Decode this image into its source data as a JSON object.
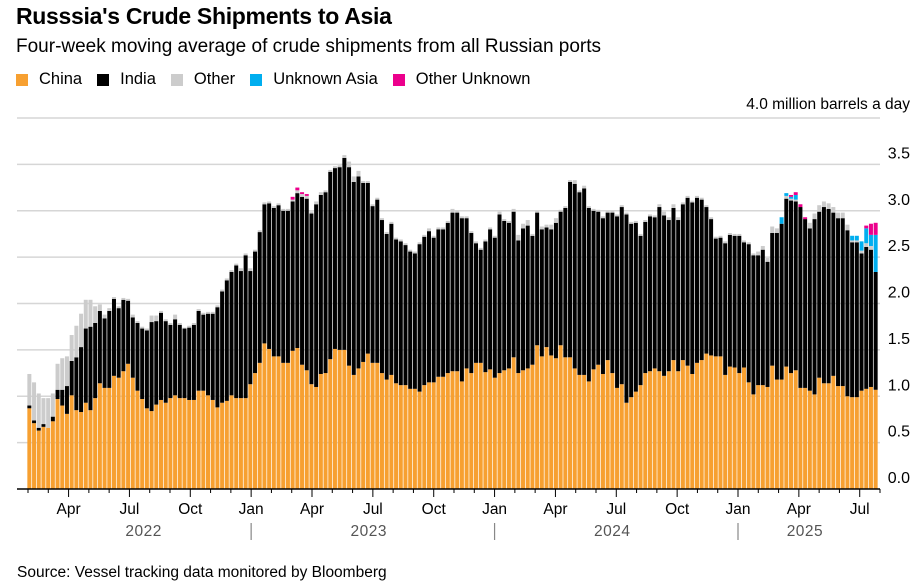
{
  "chart_data": {
    "type": "bar",
    "stacked": true,
    "title": "Russsia's Crude Shipments to Asia",
    "subtitle": "Four-week moving average of crude shipments from all Russian ports",
    "unit_label": "4.0 million barrels a day",
    "ylim": [
      0,
      4.0
    ],
    "y_ticks": [
      "0.0",
      "0.5",
      "1.0",
      "1.5",
      "2.0",
      "2.5",
      "3.0",
      "3.5"
    ],
    "y_tick_values": [
      0,
      0.5,
      1.0,
      1.5,
      2.0,
      2.5,
      3.0,
      3.5
    ],
    "grid": true,
    "legend_position": "top-left",
    "x_month_labels": [
      {
        "label": "Apr",
        "month_index": 2
      },
      {
        "label": "Jul",
        "month_index": 5
      },
      {
        "label": "Oct",
        "month_index": 8
      },
      {
        "label": "Jan",
        "month_index": 11
      },
      {
        "label": "Apr",
        "month_index": 14
      },
      {
        "label": "Jul",
        "month_index": 17
      },
      {
        "label": "Oct",
        "month_index": 20
      },
      {
        "label": "Jan",
        "month_index": 23
      },
      {
        "label": "Apr",
        "month_index": 26
      },
      {
        "label": "Jul",
        "month_index": 29
      },
      {
        "label": "Oct",
        "month_index": 32
      },
      {
        "label": "Jan",
        "month_index": 35
      },
      {
        "label": "Apr",
        "month_index": 38
      },
      {
        "label": "Jul",
        "month_index": 41
      }
    ],
    "x_year_labels": [
      {
        "label": "2022",
        "month_index": 5.7
      },
      {
        "label": "2023",
        "month_index": 16.8
      },
      {
        "label": "2024",
        "month_index": 28.8
      },
      {
        "label": "2025",
        "month_index": 38.3
      }
    ],
    "year_separators_month_index": [
      11,
      23,
      35
    ],
    "num_months": 43,
    "series": [
      {
        "name": "China",
        "color": "#f7a031",
        "values": [
          0.87,
          0.71,
          0.63,
          0.67,
          0.66,
          0.73,
          0.97,
          0.9,
          0.81,
          1.01,
          0.85,
          0.83,
          0.93,
          0.85,
          0.98,
          1.14,
          1.09,
          1.09,
          1.22,
          1.2,
          1.27,
          1.35,
          1.2,
          1.06,
          0.97,
          0.87,
          0.84,
          0.91,
          0.96,
          0.93,
          0.98,
          1.01,
          0.98,
          0.98,
          0.96,
          0.96,
          1.06,
          1.06,
          1.01,
          0.96,
          0.88,
          0.93,
          0.95,
          1.01,
          0.98,
          0.98,
          0.98,
          1.13,
          1.25,
          1.36,
          1.57,
          1.51,
          1.43,
          1.43,
          1.36,
          1.36,
          1.49,
          1.52,
          1.34,
          1.28,
          1.13,
          1.1,
          1.24,
          1.25,
          1.4,
          1.51,
          1.5,
          1.5,
          1.33,
          1.23,
          1.3,
          1.37,
          1.46,
          1.36,
          1.36,
          1.25,
          1.18,
          1.23,
          1.14,
          1.12,
          1.12,
          1.08,
          1.08,
          1.05,
          1.12,
          1.15,
          1.15,
          1.21,
          1.21,
          1.25,
          1.27,
          1.27,
          1.16,
          1.3,
          1.25,
          1.36,
          1.36,
          1.26,
          1.29,
          1.2,
          1.25,
          1.28,
          1.3,
          1.42,
          1.25,
          1.28,
          1.3,
          1.34,
          1.55,
          1.43,
          1.53,
          1.44,
          1.41,
          1.55,
          1.42,
          1.42,
          1.3,
          1.23,
          1.23,
          1.16,
          1.29,
          1.34,
          1.24,
          1.39,
          1.25,
          1.09,
          1.13,
          0.93,
          0.99,
          1.05,
          1.12,
          1.25,
          1.27,
          1.3,
          1.27,
          1.22,
          1.27,
          1.39,
          1.27,
          1.39,
          1.33,
          1.24,
          1.36,
          1.39,
          1.46,
          1.44,
          1.43,
          1.43,
          1.23,
          1.32,
          1.31,
          1.25,
          1.31,
          1.15,
          1.02,
          1.12,
          1.12,
          1.1,
          1.33,
          1.18,
          1.18,
          1.32,
          1.25,
          1.28,
          1.09,
          1.09,
          1.06,
          1.02,
          1.2,
          1.14,
          1.14,
          1.22,
          1.11,
          1.11,
          1.0,
          0.99,
          0.99,
          1.06,
          1.08,
          1.1,
          1.07
        ]
      },
      {
        "name": "India",
        "color": "#000000",
        "values": [
          0.03,
          0.03,
          0.03,
          0.03,
          0,
          0.05,
          0.1,
          0.17,
          0.3,
          0.37,
          0.57,
          0.7,
          0.8,
          0.9,
          0.81,
          0.78,
          0.75,
          0.83,
          0.83,
          0.75,
          0.77,
          0.68,
          0.65,
          0.73,
          0.76,
          0.84,
          0.96,
          0.9,
          0.94,
          0.88,
          0.79,
          0.82,
          0.79,
          0.75,
          0.78,
          0.81,
          0.86,
          0.82,
          0.88,
          0.93,
          1.08,
          1.2,
          1.3,
          1.33,
          1.43,
          1.37,
          1.54,
          1.22,
          1.31,
          1.41,
          1.5,
          1.57,
          1.6,
          1.63,
          1.64,
          1.64,
          1.61,
          1.67,
          1.81,
          1.85,
          1.84,
          1.97,
          1.93,
          1.95,
          2.02,
          1.95,
          1.97,
          2.07,
          2.14,
          2.08,
          2.07,
          1.93,
          1.84,
          1.69,
          1.76,
          1.65,
          1.57,
          1.63,
          1.55,
          1.55,
          1.51,
          1.48,
          1.46,
          1.59,
          1.6,
          1.63,
          1.56,
          1.59,
          1.59,
          1.62,
          1.71,
          1.71,
          1.76,
          1.62,
          1.51,
          1.29,
          1.22,
          1.41,
          1.51,
          1.51,
          1.71,
          1.61,
          1.57,
          1.57,
          1.43,
          1.53,
          1.54,
          1.39,
          1.43,
          1.37,
          1.29,
          1.36,
          1.46,
          1.44,
          1.61,
          1.89,
          1.99,
          1.97,
          2.01,
          1.87,
          1.71,
          1.65,
          1.68,
          1.59,
          1.73,
          1.85,
          1.91,
          2.03,
          1.87,
          1.82,
          1.61,
          1.63,
          1.67,
          1.63,
          1.77,
          1.73,
          1.63,
          1.64,
          1.63,
          1.68,
          1.81,
          1.85,
          1.78,
          1.73,
          1.58,
          1.47,
          1.27,
          1.28,
          1.42,
          1.42,
          1.42,
          1.48,
          1.35,
          1.49,
          1.5,
          1.4,
          1.46,
          1.35,
          1.43,
          1.58,
          1.68,
          1.81,
          1.86,
          1.82,
          1.95,
          1.82,
          1.75,
          1.89,
          1.79,
          1.9,
          1.88,
          1.76,
          1.81,
          1.81,
          1.79,
          1.67,
          1.67,
          1.48,
          1.53,
          1.48,
          1.27
        ]
      },
      {
        "name": "Other",
        "color": "#cccccc",
        "values": [
          0.34,
          0.41,
          0.37,
          0.28,
          0.32,
          0.25,
          0.28,
          0.34,
          0.32,
          0.28,
          0.34,
          0.36,
          0.31,
          0.29,
          0.18,
          0.07,
          0.04,
          0.03,
          0.02,
          0.02,
          0.02,
          0.02,
          0.03,
          0.02,
          0.02,
          0.02,
          0.07,
          0.06,
          0.02,
          0.02,
          0.02,
          0.05,
          0.02,
          0.01,
          0.02,
          0.02,
          0.02,
          0.02,
          0.02,
          0.02,
          0.02,
          0.02,
          0.02,
          0.02,
          0.02,
          0.03,
          0.02,
          0.03,
          0.02,
          0.02,
          0.02,
          0.02,
          0.02,
          0.02,
          0.02,
          0.02,
          0.02,
          0.03,
          0.03,
          0.03,
          0.02,
          0.03,
          0.03,
          0.02,
          0.02,
          0.02,
          0.02,
          0.03,
          0.06,
          0.06,
          0.06,
          0.02,
          0.02,
          0.02,
          0.02,
          0.02,
          0.02,
          0.02,
          0.02,
          0.02,
          0.02,
          0.02,
          0.02,
          0.02,
          0.02,
          0.03,
          0.02,
          0.02,
          0.02,
          0.02,
          0.04,
          0.02,
          0.02,
          0.02,
          0.02,
          0.02,
          0.02,
          0.02,
          0.02,
          0.02,
          0.03,
          0.02,
          0.02,
          0.03,
          0.06,
          0.05,
          0.06,
          0.02,
          0.02,
          0.03,
          0.03,
          0.05,
          0.05,
          0.02,
          0.02,
          0.02,
          0.04,
          0.02,
          0.03,
          0.02,
          0.02,
          0.02,
          0.02,
          0.02,
          0.02,
          0.02,
          0.02,
          0.02,
          0.02,
          0.02,
          0.02,
          0.02,
          0.02,
          0.02,
          0.03,
          0.04,
          0.03,
          0.04,
          0.03,
          0.02,
          0.02,
          0.02,
          0.02,
          0.02,
          0.02,
          0.02,
          0.02,
          0.02,
          0.02,
          0.02,
          0.02,
          0.02,
          0.02,
          0.02,
          0.02,
          0.04,
          0.04,
          0.04,
          0.07,
          0.05,
          0,
          0.03,
          0.02,
          0.02,
          0,
          0,
          0.06,
          0.06,
          0.07,
          0.06,
          0.06,
          0.06,
          0.06,
          0.06,
          0.06,
          0.02,
          0.02,
          0.03,
          0.04,
          0.04,
          0
        ]
      },
      {
        "name": "Unknown Asia",
        "color": "#00aeef",
        "sparse_values": {
          "160": 0.07,
          "161": 0.03,
          "162": 0.02,
          "163": 0.05,
          "175": 0.05,
          "176": 0.05,
          "177": 0.1,
          "178": 0.16,
          "179": 0.12,
          "180": 0.4
        }
      },
      {
        "name": "Other Unknown",
        "color": "#ec008c",
        "sparse_values": {
          "56": 0.03,
          "57": 0.03,
          "58": 0.02,
          "59": 0.02,
          "162": 0.02,
          "163": 0.03,
          "164": 0.03,
          "165": 0.02,
          "178": 0.03,
          "179": 0.12,
          "180": 0.13
        }
      }
    ],
    "num_weeks": 181,
    "source": "Source: Vessel tracking data monitored by Bloomberg"
  }
}
